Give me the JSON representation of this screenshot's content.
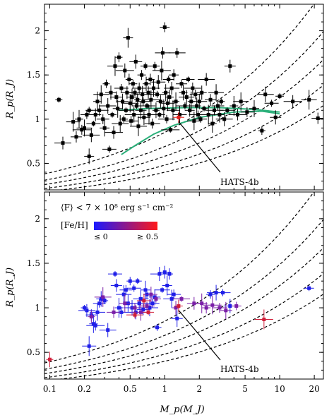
{
  "chart_data": [
    {
      "type": "scatter",
      "xscale": "log",
      "xlim": [
        0.09,
        24
      ],
      "ylim": [
        0.2,
        2.3
      ],
      "ylabel": "R_p(R_J)",
      "yticks": [
        0.5,
        1,
        1.5,
        2
      ],
      "ytick_labels": [
        "0.5",
        "1",
        "1.5",
        "2"
      ],
      "annotation": "HATS-4b",
      "annotation_target": [
        1.32,
        1.02
      ],
      "highlight_color": "#e0201c",
      "marker_color": "#000000",
      "model_curve_color": "#2bb07a",
      "grid": false,
      "series": [
        {
          "points": [
            [
              0.12,
              1.22
            ],
            [
              0.13,
              0.73
            ],
            [
              0.16,
              0.97
            ],
            [
              0.17,
              0.8
            ],
            [
              0.18,
              1.0
            ],
            [
              0.19,
              0.88
            ],
            [
              0.2,
              0.9
            ],
            [
              0.21,
              1.05
            ],
            [
              0.22,
              0.58
            ],
            [
              0.22,
              1.1
            ],
            [
              0.23,
              0.82
            ],
            [
              0.24,
              0.95
            ],
            [
              0.25,
              1.05
            ],
            [
              0.26,
              1.2
            ],
            [
              0.27,
              1.1
            ],
            [
              0.28,
              1.28
            ],
            [
              0.29,
              1.0
            ],
            [
              0.3,
              0.9
            ],
            [
              0.31,
              1.4
            ],
            [
              0.32,
              1.15
            ],
            [
              0.33,
              0.66
            ],
            [
              0.34,
              1.3
            ],
            [
              0.35,
              1.05
            ],
            [
              0.36,
              0.85
            ],
            [
              0.37,
              1.6
            ],
            [
              0.38,
              1.25
            ],
            [
              0.39,
              1.12
            ],
            [
              0.4,
              1.7
            ],
            [
              0.41,
              0.95
            ],
            [
              0.42,
              1.35
            ],
            [
              0.43,
              1.2
            ],
            [
              0.44,
              1.0
            ],
            [
              0.45,
              1.55
            ],
            [
              0.46,
              1.1
            ],
            [
              0.47,
              1.3
            ],
            [
              0.48,
              1.92
            ],
            [
              0.49,
              1.45
            ],
            [
              0.5,
              1.18
            ],
            [
              0.51,
              0.98
            ],
            [
              0.52,
              1.25
            ],
            [
              0.53,
              1.4
            ],
            [
              0.54,
              1.05
            ],
            [
              0.55,
              1.3
            ],
            [
              0.56,
              1.65
            ],
            [
              0.57,
              1.15
            ],
            [
              0.58,
              1.22
            ],
            [
              0.59,
              0.92
            ],
            [
              0.6,
              1.35
            ],
            [
              0.62,
              1.1
            ],
            [
              0.63,
              1.5
            ],
            [
              0.64,
              1.28
            ],
            [
              0.65,
              1.2
            ],
            [
              0.66,
              1.02
            ],
            [
              0.68,
              1.6
            ],
            [
              0.69,
              1.4
            ],
            [
              0.7,
              1.15
            ],
            [
              0.72,
              1.3
            ],
            [
              0.73,
              1.05
            ],
            [
              0.75,
              1.45
            ],
            [
              0.76,
              1.22
            ],
            [
              0.78,
              0.95
            ],
            [
              0.8,
              1.35
            ],
            [
              0.82,
              1.6
            ],
            [
              0.84,
              1.1
            ],
            [
              0.86,
              1.28
            ],
            [
              0.88,
              1.42
            ],
            [
              0.9,
              1.05
            ],
            [
              0.92,
              1.2
            ],
            [
              0.94,
              1.55
            ],
            [
              0.96,
              1.75
            ],
            [
              0.98,
              1.12
            ],
            [
              1.0,
              2.04
            ],
            [
              1.02,
              1.3
            ],
            [
              1.04,
              1.0
            ],
            [
              1.06,
              1.18
            ],
            [
              1.08,
              1.45
            ],
            [
              1.1,
              1.25
            ],
            [
              1.12,
              0.88
            ],
            [
              1.15,
              1.35
            ],
            [
              1.18,
              1.1
            ],
            [
              1.2,
              1.5
            ],
            [
              1.25,
              1.2
            ],
            [
              1.28,
              1.75
            ],
            [
              1.35,
              1.05
            ],
            [
              1.4,
              1.4
            ],
            [
              1.45,
              1.3
            ],
            [
              1.5,
              1.15
            ],
            [
              1.55,
              1.25
            ],
            [
              1.6,
              1.45
            ],
            [
              1.65,
              1.1
            ],
            [
              1.7,
              1.2
            ],
            [
              1.75,
              1.35
            ],
            [
              1.8,
              0.98
            ],
            [
              1.85,
              1.28
            ],
            [
              1.9,
              1.15
            ],
            [
              1.95,
              1.05
            ],
            [
              2.0,
              1.2
            ],
            [
              2.05,
              1.0
            ],
            [
              2.1,
              1.3
            ],
            [
              2.2,
              1.12
            ],
            [
              2.3,
              1.45
            ],
            [
              2.4,
              1.05
            ],
            [
              2.5,
              1.22
            ],
            [
              2.6,
              0.95
            ],
            [
              2.7,
              1.1
            ],
            [
              2.8,
              1.3
            ],
            [
              2.9,
              1.15
            ],
            [
              3.0,
              1.05
            ],
            [
              3.1,
              1.2
            ],
            [
              3.3,
              1.0
            ],
            [
              3.5,
              1.1
            ],
            [
              3.7,
              1.6
            ],
            [
              4.0,
              1.15
            ],
            [
              4.3,
              1.05
            ],
            [
              4.6,
              1.2
            ],
            [
              5.2,
              1.08
            ],
            [
              6.0,
              1.12
            ],
            [
              7.0,
              0.87
            ],
            [
              7.5,
              1.28
            ],
            [
              8.5,
              1.18
            ],
            [
              9.2,
              1.02
            ],
            [
              10.0,
              1.26
            ],
            [
              13.0,
              1.2
            ],
            [
              18.0,
              1.22
            ],
            [
              21.5,
              1.01
            ]
          ]
        },
        {
          "points": [
            [
              1.32,
              1.02
            ]
          ]
        }
      ]
    },
    {
      "type": "scatter",
      "xscale": "log",
      "xlim": [
        0.09,
        24
      ],
      "ylim": [
        0.2,
        2.3
      ],
      "xlabel": "M_p(M_J)",
      "ylabel": "R_p(R_J)",
      "xticks": [
        0.1,
        0.2,
        0.5,
        1,
        2,
        5,
        10,
        20
      ],
      "xtick_labels": [
        "0.1",
        "0.2",
        "0.5",
        "1",
        "2",
        "5",
        "10",
        "20"
      ],
      "yticks": [
        0.5,
        1,
        1.5,
        2
      ],
      "ytick_labels": [
        "0.5",
        "1",
        "1.5",
        "2"
      ],
      "annotation": "HATS-4b",
      "annotation_target": [
        1.32,
        1.02
      ],
      "legend_title": "⟨F⟩ < 7 × 10⁸ erg s⁻¹ cm⁻²",
      "colorbar_label": "[Fe/H]",
      "colorbar_low_label": "≤ 0",
      "colorbar_high_label": "≥ 0.5",
      "colorbar_colors": [
        "#1a1aff",
        "#ff1a1a"
      ],
      "legend_position": "top-left",
      "grid": false,
      "series": [
        {
          "points": [
            [
              0.2,
              1.0
            ],
            [
              0.21,
              0.97
            ],
            [
              0.22,
              0.57
            ],
            [
              0.23,
              0.92
            ],
            [
              0.24,
              0.82
            ],
            [
              0.25,
              0.8
            ],
            [
              0.26,
              0.95
            ],
            [
              0.27,
              1.05
            ],
            [
              0.28,
              1.1
            ],
            [
              0.3,
              1.08
            ],
            [
              0.32,
              0.75
            ],
            [
              0.37,
              1.38
            ],
            [
              0.38,
              1.25
            ],
            [
              0.4,
              1.0
            ],
            [
              0.42,
              0.95
            ],
            [
              0.44,
              1.15
            ],
            [
              0.46,
              1.2
            ],
            [
              0.48,
              1.05
            ],
            [
              0.5,
              1.3
            ],
            [
              0.52,
              1.0
            ],
            [
              0.54,
              1.22
            ],
            [
              0.56,
              0.95
            ],
            [
              0.58,
              1.3
            ],
            [
              0.6,
              1.05
            ],
            [
              0.62,
              1.1
            ],
            [
              0.65,
              0.98
            ],
            [
              0.68,
              1.2
            ],
            [
              0.7,
              1.15
            ],
            [
              0.74,
              1.0
            ],
            [
              0.78,
              1.05
            ],
            [
              0.82,
              1.12
            ],
            [
              0.86,
              0.78
            ],
            [
              0.9,
              1.38
            ],
            [
              0.95,
              1.2
            ],
            [
              1.0,
              1.4
            ],
            [
              1.05,
              1.25
            ],
            [
              1.1,
              1.38
            ],
            [
              1.15,
              1.1
            ],
            [
              1.2,
              1.15
            ],
            [
              1.28,
              0.88
            ],
            [
              2.5,
              1.15
            ],
            [
              2.8,
              1.17
            ],
            [
              3.2,
              1.17
            ],
            [
              3.7,
              1.02
            ],
            [
              18.0,
              1.22
            ]
          ],
          "color": "#1f1fe8"
        },
        {
          "points": [
            [
              0.23,
              0.9
            ],
            [
              0.29,
              1.12
            ],
            [
              0.36,
              0.95
            ],
            [
              0.45,
              1.05
            ],
            [
              0.55,
              1.0
            ],
            [
              0.62,
              0.95
            ],
            [
              0.7,
              1.02
            ],
            [
              0.76,
              1.15
            ],
            [
              0.84,
              1.1
            ],
            [
              1.25,
              1.0
            ],
            [
              1.4,
              1.1
            ],
            [
              1.8,
              1.05
            ],
            [
              2.1,
              1.05
            ],
            [
              2.3,
              1.0
            ],
            [
              2.6,
              1.03
            ],
            [
              3.0,
              1.0
            ],
            [
              3.4,
              0.97
            ],
            [
              4.2,
              1.02
            ]
          ],
          "color": "#7a1fa8"
        },
        {
          "points": [
            [
              0.1,
              0.42
            ],
            [
              0.55,
              0.92
            ],
            [
              0.66,
              1.08
            ],
            [
              0.72,
              0.95
            ],
            [
              1.32,
              1.02
            ],
            [
              7.3,
              0.87
            ]
          ],
          "color": "#d01f3a"
        }
      ]
    }
  ]
}
